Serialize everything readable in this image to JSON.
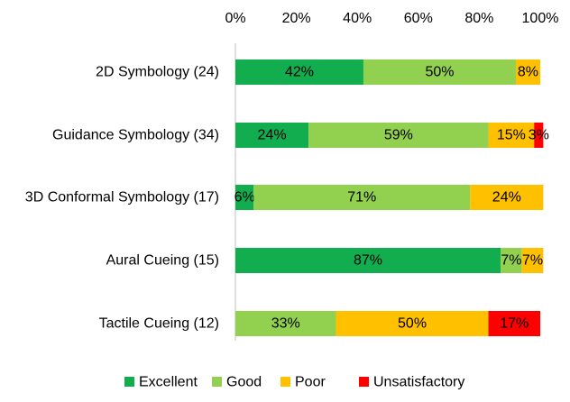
{
  "chart_data": {
    "type": "bar",
    "orientation": "horizontal",
    "stacked": true,
    "categories": [
      "2D Symbology (24)",
      "Guidance Symbology (34)",
      "3D Conformal Symbology (17)",
      "Aural Cueing (15)",
      "Tactile Cueing (12)"
    ],
    "series": [
      {
        "name": "Excellent",
        "color": "#12ad4f",
        "values": [
          42,
          24,
          6,
          87,
          0
        ],
        "labels": [
          "42%",
          "24%",
          "6%",
          "87%",
          ""
        ]
      },
      {
        "name": "Good",
        "color": "#92d050",
        "values": [
          50,
          59,
          71,
          7,
          33
        ],
        "labels": [
          "50%",
          "59%",
          "71%",
          "7%",
          "33%"
        ]
      },
      {
        "name": "Poor",
        "color": "#ffc000",
        "values": [
          8,
          15,
          24,
          7,
          50
        ],
        "labels": [
          "8%",
          "15%",
          "24%",
          "7%",
          "50%"
        ]
      },
      {
        "name": "Unsatisfactory",
        "color": "#ff0000",
        "values": [
          0,
          3,
          0,
          0,
          17
        ],
        "labels": [
          "",
          "3%",
          "",
          "",
          "17%"
        ]
      }
    ],
    "x_ticks": [
      "0%",
      "20%",
      "40%",
      "60%",
      "80%",
      "100%"
    ],
    "xlim": [
      0,
      100
    ],
    "title": "",
    "xlabel": "",
    "ylabel": "",
    "grid": false,
    "legend_position": "bottom"
  }
}
